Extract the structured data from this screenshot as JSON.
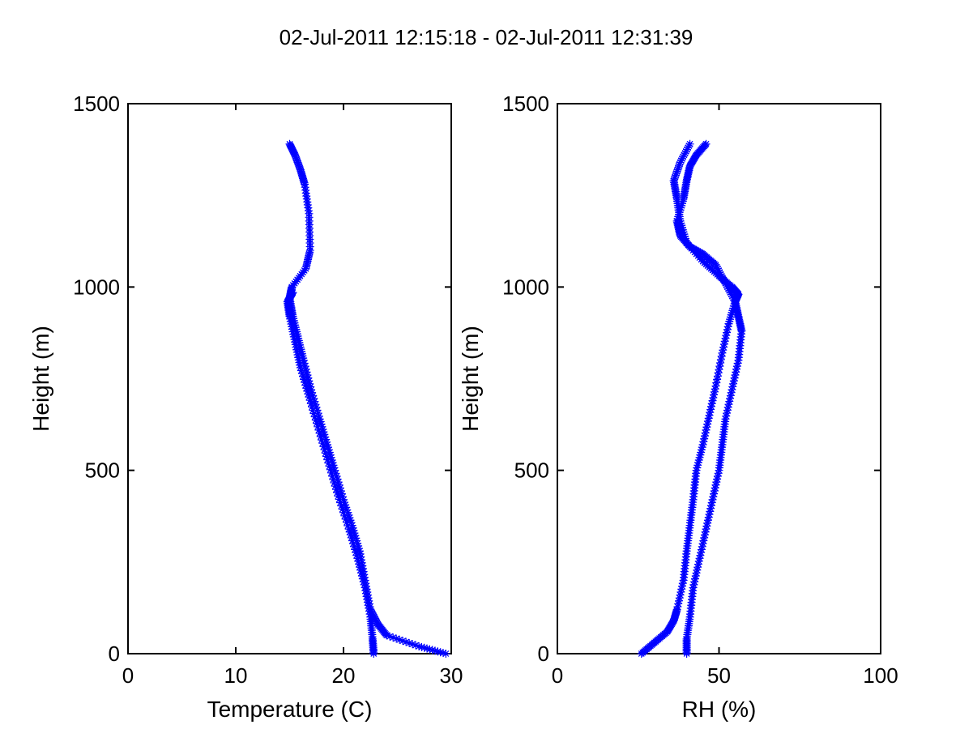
{
  "figure": {
    "title": "02-Jul-2011 12:15:18 - 02-Jul-2011 12:31:39"
  },
  "colors": {
    "series": "#0000ff",
    "axes": "#000000",
    "background": "#ffffff"
  },
  "chart_data": [
    {
      "type": "line",
      "marker": "asterisk",
      "xlabel": "Temperature (C)",
      "ylabel": "Height (m)",
      "xlim": [
        0,
        30
      ],
      "ylim": [
        0,
        1500
      ],
      "xticks": [
        0,
        10,
        20,
        30
      ],
      "yticks": [
        0,
        500,
        1000,
        1500
      ],
      "xtick_labels": [
        "0",
        "10",
        "20",
        "30"
      ],
      "ytick_labels": [
        "0",
        "500",
        "1000",
        "1500"
      ],
      "grid": false,
      "series": [
        {
          "x": [
            29.5,
            27.0,
            24.0,
            23.2,
            22.5,
            22.0,
            21.5,
            20.8,
            20.0,
            19.2,
            18.5,
            17.8,
            17.0,
            16.3,
            15.8,
            15.3,
            15.0,
            15.2,
            16.5,
            16.9,
            16.8,
            16.4,
            16.0,
            15.5,
            15.0
          ],
          "y": [
            0,
            20,
            50,
            80,
            120,
            200,
            280,
            350,
            420,
            500,
            570,
            640,
            720,
            800,
            860,
            920,
            970,
            1000,
            1050,
            1100,
            1200,
            1280,
            1320,
            1360,
            1390
          ]
        },
        {
          "x": [
            22.8,
            22.7,
            22.5,
            22.0,
            21.3,
            20.5,
            19.5,
            18.6,
            17.7,
            16.8,
            16.0,
            15.5,
            15.0,
            14.8,
            15.3
          ],
          "y": [
            0,
            40,
            100,
            180,
            260,
            340,
            430,
            520,
            610,
            700,
            780,
            850,
            920,
            960,
            985
          ]
        }
      ]
    },
    {
      "type": "line",
      "marker": "asterisk",
      "xlabel": "RH (%)",
      "ylabel": "Height (m)",
      "xlim": [
        0,
        100
      ],
      "ylim": [
        0,
        1500
      ],
      "xticks": [
        0,
        50,
        100
      ],
      "yticks": [
        0,
        500,
        1000,
        1500
      ],
      "xtick_labels": [
        "0",
        "50",
        "100"
      ],
      "ytick_labels": [
        "0",
        "500",
        "1000",
        "1500"
      ],
      "grid": false,
      "series": [
        {
          "x": [
            26,
            30,
            34,
            36,
            37,
            39,
            40,
            41,
            42,
            43,
            45,
            47,
            49,
            51,
            53,
            55,
            56,
            54,
            50,
            45,
            40,
            38,
            37,
            36,
            38,
            41
          ],
          "y": [
            0,
            30,
            60,
            90,
            120,
            200,
            280,
            350,
            420,
            500,
            570,
            650,
            730,
            820,
            900,
            960,
            980,
            1000,
            1030,
            1070,
            1120,
            1180,
            1240,
            1290,
            1340,
            1390
          ]
        },
        {
          "x": [
            40,
            40,
            41,
            42,
            44,
            46,
            48,
            50,
            51,
            52,
            54,
            56,
            57,
            56,
            55,
            52,
            49,
            45,
            41,
            38,
            37,
            39,
            40,
            41,
            43,
            46
          ],
          "y": [
            0,
            40,
            100,
            180,
            260,
            340,
            420,
            500,
            570,
            640,
            720,
            800,
            880,
            920,
            960,
            1010,
            1060,
            1090,
            1110,
            1140,
            1180,
            1240,
            1290,
            1330,
            1360,
            1390
          ]
        }
      ]
    }
  ]
}
